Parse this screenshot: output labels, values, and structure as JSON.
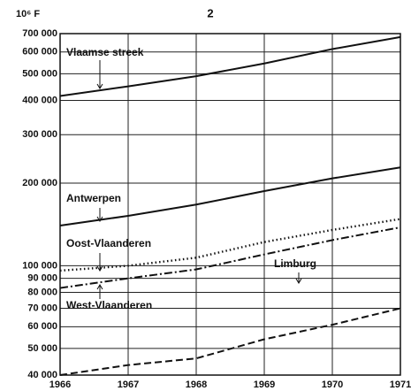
{
  "chart_data": {
    "type": "line",
    "title": "2",
    "ylabel": "10⁶ F",
    "log_y": true,
    "grid": true,
    "color": "#111111",
    "x": [
      1966,
      1967,
      1968,
      1969,
      1970,
      1971
    ],
    "xlim": [
      1966,
      1971
    ],
    "xticks": [
      1966,
      1967,
      1968,
      1969,
      1970,
      1971
    ],
    "ylim": [
      40000,
      700000
    ],
    "yticks": [
      {
        "value": 40000,
        "label": "40 000"
      },
      {
        "value": 50000,
        "label": "50 000"
      },
      {
        "value": 60000,
        "label": "60 000"
      },
      {
        "value": 70000,
        "label": "70 000"
      },
      {
        "value": 80000,
        "label": "80 000"
      },
      {
        "value": 90000,
        "label": "90 000"
      },
      {
        "value": 100000,
        "label": "100 000"
      },
      {
        "value": 200000,
        "label": "200 000"
      },
      {
        "value": 300000,
        "label": "300 000"
      },
      {
        "value": 400000,
        "label": "400 000"
      },
      {
        "value": 500000,
        "label": "500 000"
      },
      {
        "value": 600000,
        "label": "600 000"
      },
      {
        "value": 700000,
        "label": "700 000"
      }
    ],
    "series": [
      {
        "name": "Vlaamse streek",
        "color": "#111111",
        "style": "solid",
        "values": [
          415000,
          450000,
          490000,
          545000,
          615000,
          680000
        ]
      },
      {
        "name": "Antwerpen",
        "color": "#111111",
        "style": "solid",
        "values": [
          140000,
          152000,
          167000,
          187000,
          208000,
          228000
        ]
      },
      {
        "name": "Oost-Vlaanderen",
        "color": "#111111",
        "style": "dotted",
        "values": [
          96000,
          100000,
          107000,
          122000,
          135000,
          148000
        ]
      },
      {
        "name": "West-Vlaanderen",
        "color": "#111111",
        "style": "dashdot",
        "values": [
          83000,
          90000,
          97000,
          110000,
          124000,
          138000
        ]
      },
      {
        "name": "Limburg",
        "color": "#111111",
        "style": "dashed",
        "values": [
          40000,
          43500,
          46000,
          54000,
          61000,
          70000
        ]
      }
    ]
  }
}
